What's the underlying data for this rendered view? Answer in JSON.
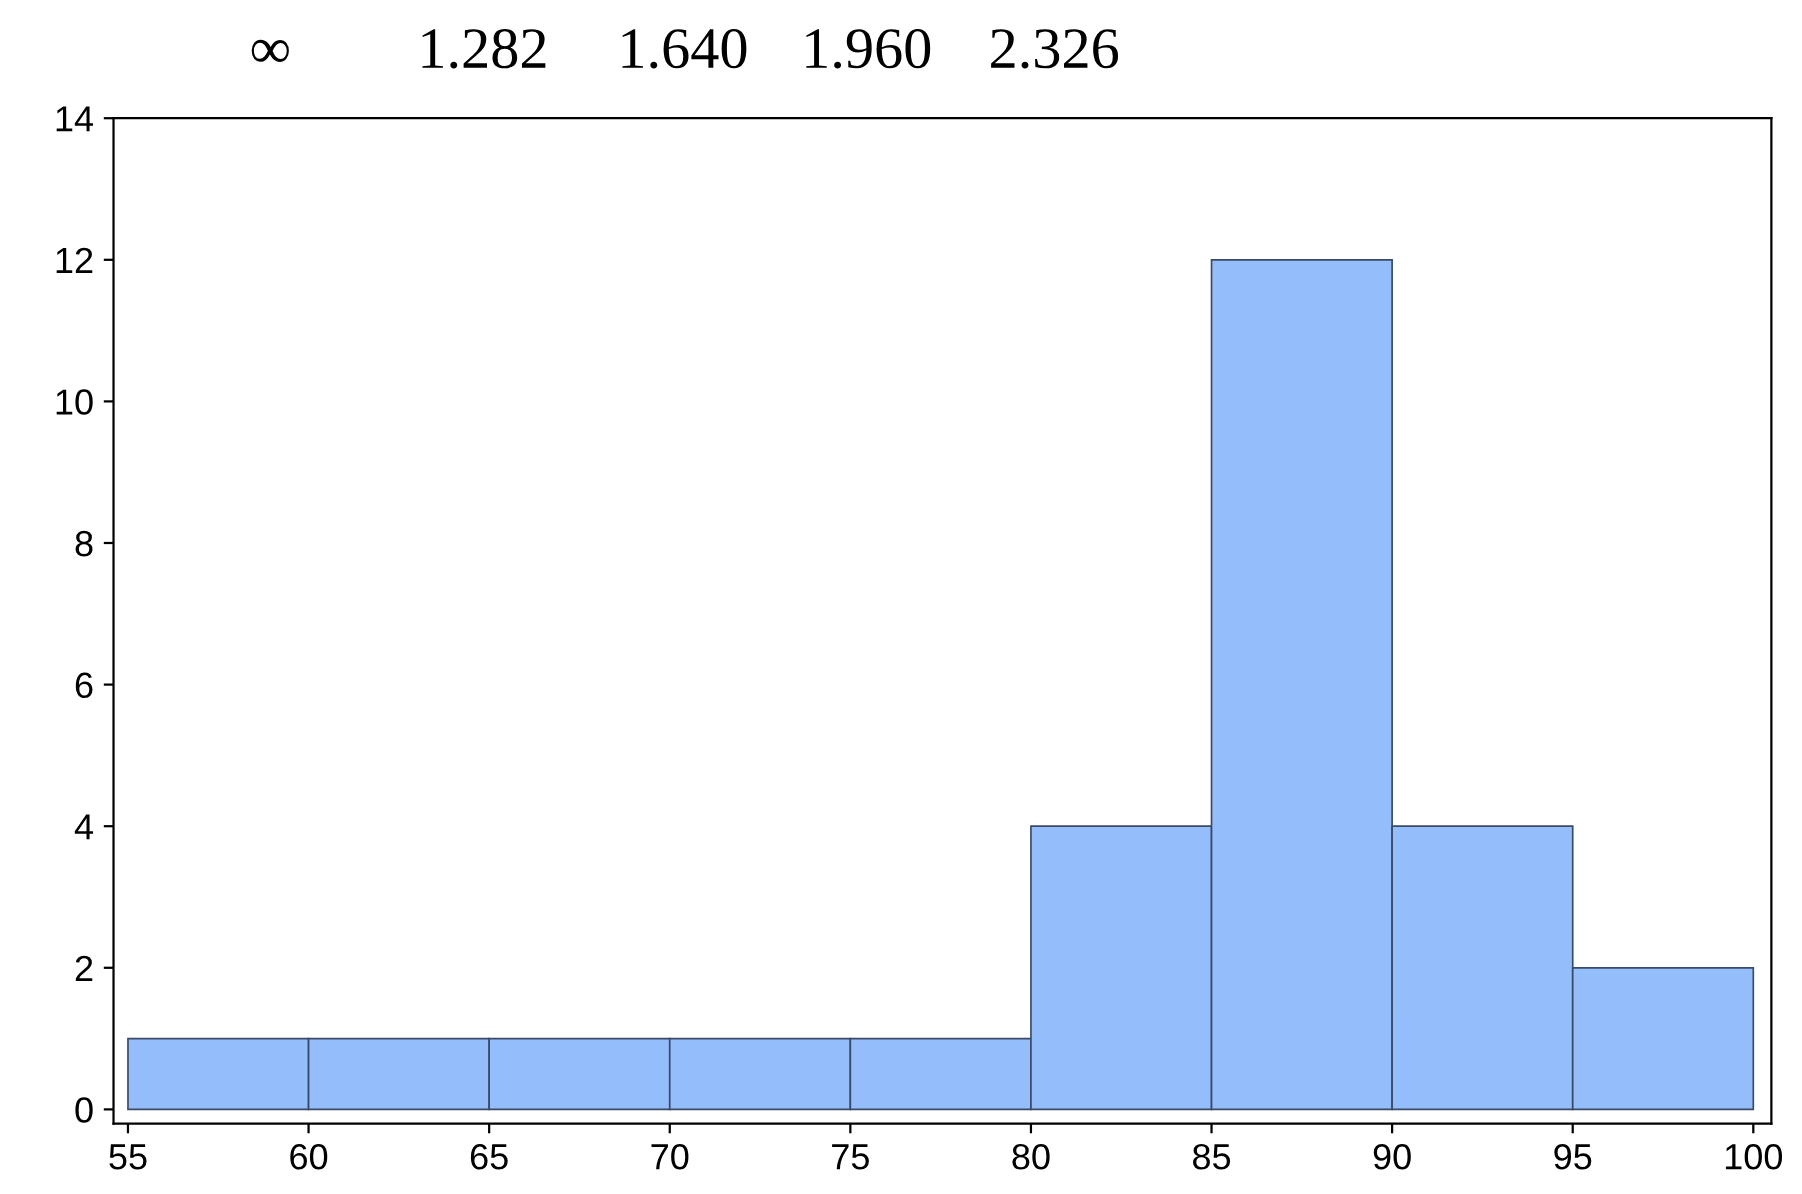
{
  "chart_data": {
    "type": "histogram",
    "bins": [
      55,
      60,
      65,
      70,
      75,
      80,
      85,
      90,
      95,
      100
    ],
    "values": [
      1,
      1,
      1,
      1,
      1,
      4,
      12,
      4,
      2
    ],
    "color": "#94bdfc",
    "xlim": [
      54.6,
      100.5
    ],
    "xticks": [
      55,
      60,
      65,
      70,
      75,
      80,
      85,
      90,
      95,
      100
    ],
    "ylim": [
      -0.2,
      14
    ],
    "yticks": [
      0,
      2,
      4,
      6,
      8,
      10,
      12,
      14
    ],
    "grid": false,
    "annotations": [
      "∞",
      "1.282",
      "1.640",
      "1.960",
      "2.326"
    ]
  }
}
